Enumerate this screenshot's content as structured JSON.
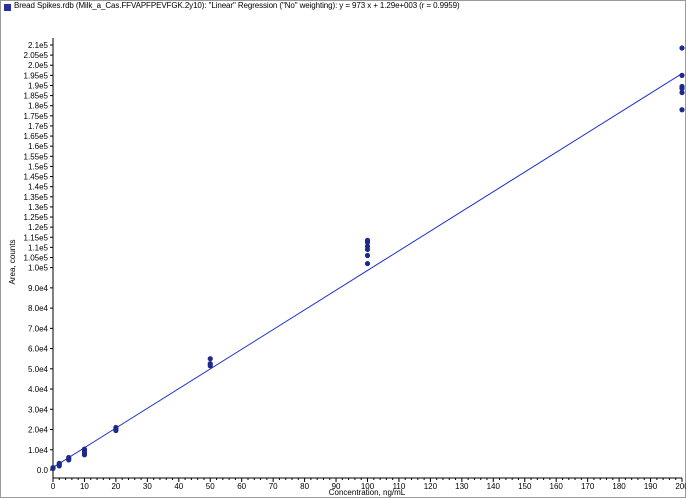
{
  "chart_data": {
    "type": "scatter",
    "legend_marker_color": "#2b2f9e",
    "legend_text": "Bread Spikes.rdb (Milk_a_Cas.FFVAPFPEVFGK.2y10): \"Linear\" Regression (\"No\" weighting): y = 973 x + 1.29e+003 (r = 0.9959)",
    "xlabel": "Concentration, ng/mL",
    "ylabel": "Area, counts",
    "xlim": [
      0,
      200
    ],
    "ylim": [
      0,
      215000
    ],
    "x_ticks": [
      0,
      10,
      20,
      30,
      40,
      50,
      60,
      70,
      80,
      90,
      100,
      110,
      120,
      130,
      140,
      150,
      160,
      170,
      180,
      190,
      200
    ],
    "x_tick_labels": [
      "0",
      "10",
      "20",
      "30",
      "40",
      "50",
      "60",
      "70",
      "80",
      "90",
      "100",
      "110",
      "120",
      "130",
      "140",
      "150",
      "160",
      "170",
      "180",
      "190",
      "200"
    ],
    "y_ticks": [
      0,
      10000,
      20000,
      30000,
      40000,
      50000,
      60000,
      70000,
      80000,
      90000,
      100000,
      105000,
      110000,
      115000,
      120000,
      125000,
      130000,
      135000,
      140000,
      145000,
      150000,
      155000,
      160000,
      165000,
      170000,
      175000,
      180000,
      185000,
      190000,
      195000,
      200000,
      205000,
      210000
    ],
    "y_tick_labels": [
      "0.0",
      "1.0e4",
      "2.0e4",
      "3.0e4",
      "4.0e4",
      "5.0e4",
      "6.0e4",
      "7.0e4",
      "8.0e4",
      "9.0e4",
      "1.0e5",
      "1.05e5",
      "1.1e5",
      "1.15e5",
      "1.2e5",
      "1.25e5",
      "1.3e5",
      "1.35e5",
      "1.4e5",
      "1.45e5",
      "1.5e5",
      "1.55e5",
      "1.6e5",
      "1.65e5",
      "1.7e5",
      "1.75e5",
      "1.8e5",
      "1.85e5",
      "1.9e5",
      "1.95e5",
      "2.0e5",
      "2.05e5",
      "2.1e5"
    ],
    "grid": false,
    "regression": {
      "slope": 973,
      "intercept": 1290,
      "x_range": [
        0,
        200
      ],
      "color": "#2233cc"
    },
    "marker_color": "#1c2a8a",
    "points": [
      {
        "x": 0,
        "y": 800
      },
      {
        "x": 0,
        "y": 1200
      },
      {
        "x": 2,
        "y": 2000
      },
      {
        "x": 2,
        "y": 2700
      },
      {
        "x": 2,
        "y": 3300
      },
      {
        "x": 5,
        "y": 5000
      },
      {
        "x": 5,
        "y": 5600
      },
      {
        "x": 5,
        "y": 6200
      },
      {
        "x": 10,
        "y": 7500
      },
      {
        "x": 10,
        "y": 8500
      },
      {
        "x": 10,
        "y": 9500
      },
      {
        "x": 10,
        "y": 10300
      },
      {
        "x": 20,
        "y": 19500
      },
      {
        "x": 20,
        "y": 20300
      },
      {
        "x": 20,
        "y": 21000
      },
      {
        "x": 50,
        "y": 51500
      },
      {
        "x": 50,
        "y": 52500
      },
      {
        "x": 50,
        "y": 55000
      },
      {
        "x": 100,
        "y": 102000
      },
      {
        "x": 100,
        "y": 106000
      },
      {
        "x": 100,
        "y": 109000
      },
      {
        "x": 100,
        "y": 110500
      },
      {
        "x": 100,
        "y": 112500
      },
      {
        "x": 100,
        "y": 113500
      },
      {
        "x": 200,
        "y": 178000
      },
      {
        "x": 200,
        "y": 186500
      },
      {
        "x": 200,
        "y": 188500
      },
      {
        "x": 200,
        "y": 189500
      },
      {
        "x": 200,
        "y": 195000
      },
      {
        "x": 200,
        "y": 208500
      }
    ]
  }
}
